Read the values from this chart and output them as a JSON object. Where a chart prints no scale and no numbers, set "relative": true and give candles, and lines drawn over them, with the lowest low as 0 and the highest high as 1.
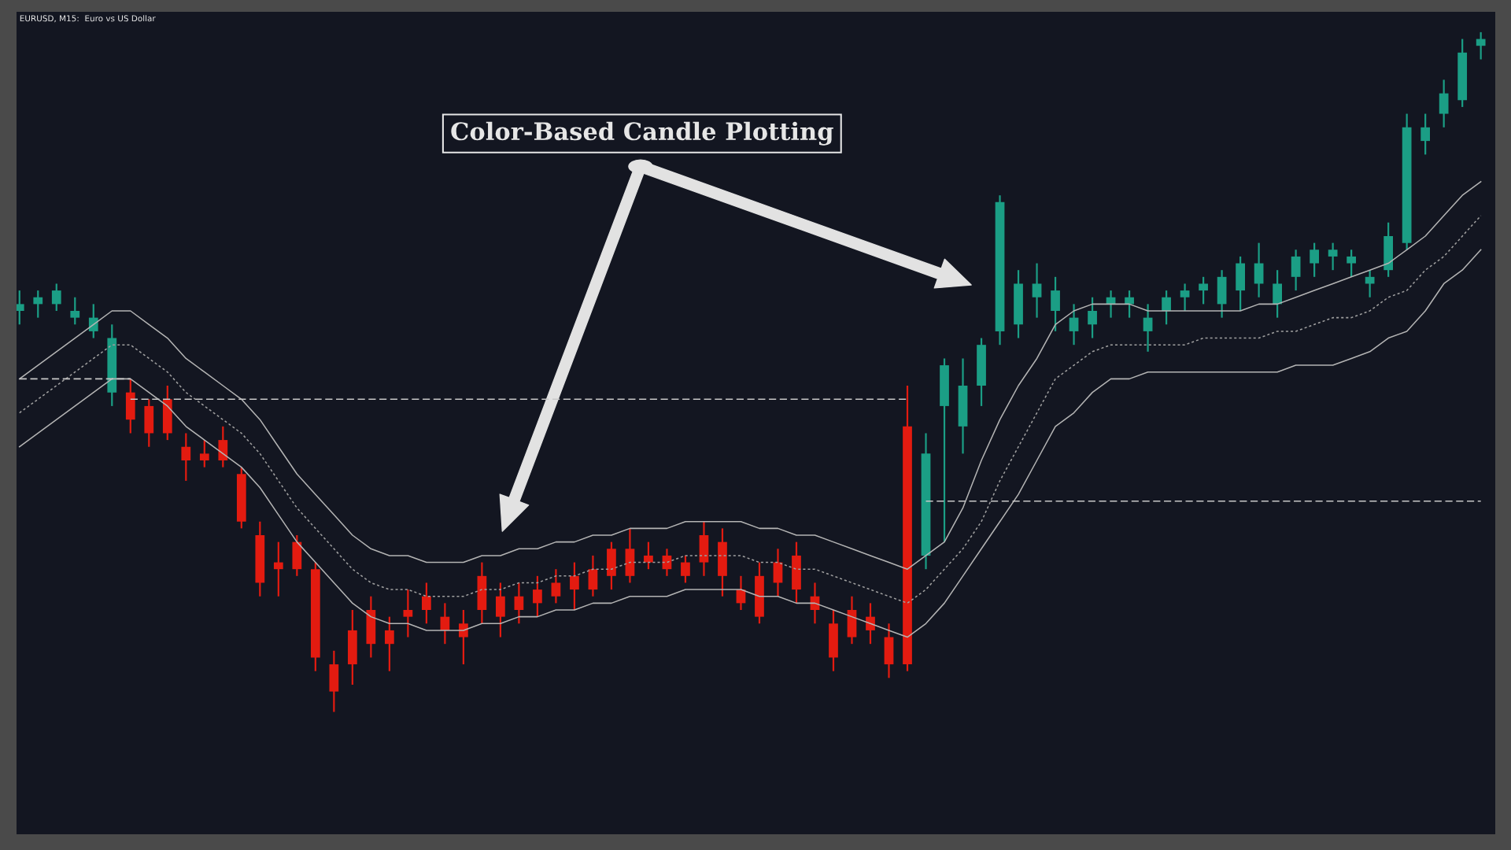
{
  "chart_data": {
    "type": "candlestick",
    "title": "EURUSD, M15:  Euro vs US Dollar",
    "relative": true,
    "tick_labels": false,
    "categories": [
      null,
      null,
      null,
      null,
      null,
      null,
      null,
      null,
      null,
      null,
      null,
      null,
      null,
      null,
      null,
      null,
      null,
      null,
      null,
      null,
      null,
      null,
      null,
      null,
      null,
      null,
      null,
      null,
      null,
      null,
      null,
      null,
      null,
      null,
      null,
      null,
      null,
      null,
      null,
      null,
      null,
      null,
      null,
      null,
      null,
      null,
      null,
      null,
      null,
      null,
      null,
      null,
      null,
      null,
      null,
      null,
      null,
      null,
      null,
      null,
      null,
      null,
      null,
      null,
      null,
      null,
      null,
      null,
      null,
      null,
      null,
      null,
      null,
      null,
      null,
      null,
      null,
      null,
      null,
      null
    ],
    "ohlc": [
      [
        0.59,
        0.62,
        0.57,
        0.6
      ],
      [
        0.6,
        0.62,
        0.58,
        0.61
      ],
      [
        0.6,
        0.63,
        0.59,
        0.62
      ],
      [
        0.58,
        0.61,
        0.57,
        0.59
      ],
      [
        0.56,
        0.6,
        0.55,
        0.58
      ],
      [
        0.47,
        0.57,
        0.45,
        0.55
      ],
      [
        0.47,
        0.49,
        0.41,
        0.43
      ],
      [
        0.45,
        0.46,
        0.39,
        0.41
      ],
      [
        0.46,
        0.48,
        0.4,
        0.41
      ],
      [
        0.39,
        0.41,
        0.34,
        0.37
      ],
      [
        0.38,
        0.4,
        0.36,
        0.37
      ],
      [
        0.4,
        0.42,
        0.36,
        0.37
      ],
      [
        0.35,
        0.36,
        0.27,
        0.28
      ],
      [
        0.26,
        0.28,
        0.17,
        0.19
      ],
      [
        0.22,
        0.25,
        0.17,
        0.21
      ],
      [
        0.25,
        0.26,
        0.2,
        0.21
      ],
      [
        0.21,
        0.22,
        0.06,
        0.08
      ],
      [
        0.07,
        0.09,
        0.0,
        0.03
      ],
      [
        0.12,
        0.15,
        0.04,
        0.07
      ],
      [
        0.15,
        0.17,
        0.08,
        0.1
      ],
      [
        0.12,
        0.14,
        0.06,
        0.1
      ],
      [
        0.15,
        0.18,
        0.11,
        0.14
      ],
      [
        0.17,
        0.19,
        0.13,
        0.15
      ],
      [
        0.14,
        0.16,
        0.1,
        0.12
      ],
      [
        0.13,
        0.15,
        0.07,
        0.11
      ],
      [
        0.2,
        0.22,
        0.13,
        0.15
      ],
      [
        0.17,
        0.19,
        0.11,
        0.14
      ],
      [
        0.17,
        0.19,
        0.13,
        0.15
      ],
      [
        0.18,
        0.2,
        0.14,
        0.16
      ],
      [
        0.19,
        0.21,
        0.16,
        0.17
      ],
      [
        0.2,
        0.22,
        0.15,
        0.18
      ],
      [
        0.21,
        0.23,
        0.17,
        0.18
      ],
      [
        0.24,
        0.25,
        0.18,
        0.2
      ],
      [
        0.24,
        0.27,
        0.19,
        0.2
      ],
      [
        0.23,
        0.25,
        0.21,
        0.22
      ],
      [
        0.23,
        0.24,
        0.2,
        0.21
      ],
      [
        0.22,
        0.23,
        0.19,
        0.2
      ],
      [
        0.26,
        0.28,
        0.2,
        0.22
      ],
      [
        0.25,
        0.27,
        0.17,
        0.2
      ],
      [
        0.18,
        0.2,
        0.15,
        0.16
      ],
      [
        0.2,
        0.22,
        0.13,
        0.14
      ],
      [
        0.22,
        0.24,
        0.17,
        0.19
      ],
      [
        0.23,
        0.25,
        0.16,
        0.18
      ],
      [
        0.17,
        0.19,
        0.13,
        0.15
      ],
      [
        0.13,
        0.15,
        0.06,
        0.08
      ],
      [
        0.15,
        0.17,
        0.1,
        0.11
      ],
      [
        0.14,
        0.16,
        0.1,
        0.12
      ],
      [
        0.11,
        0.13,
        0.05,
        0.07
      ],
      [
        0.42,
        0.48,
        0.06,
        0.07
      ],
      [
        0.23,
        0.41,
        0.21,
        0.38
      ],
      [
        0.45,
        0.52,
        0.25,
        0.51
      ],
      [
        0.42,
        0.52,
        0.38,
        0.48
      ],
      [
        0.48,
        0.55,
        0.45,
        0.54
      ],
      [
        0.56,
        0.76,
        0.54,
        0.75
      ],
      [
        0.57,
        0.65,
        0.55,
        0.63
      ],
      [
        0.61,
        0.66,
        0.58,
        0.63
      ],
      [
        0.59,
        0.64,
        0.56,
        0.62
      ],
      [
        0.56,
        0.6,
        0.54,
        0.58
      ],
      [
        0.57,
        0.61,
        0.55,
        0.59
      ],
      [
        0.6,
        0.62,
        0.58,
        0.61
      ],
      [
        0.6,
        0.62,
        0.58,
        0.61
      ],
      [
        0.56,
        0.6,
        0.53,
        0.58
      ],
      [
        0.59,
        0.62,
        0.57,
        0.61
      ],
      [
        0.61,
        0.63,
        0.59,
        0.62
      ],
      [
        0.62,
        0.64,
        0.6,
        0.63
      ],
      [
        0.6,
        0.65,
        0.58,
        0.64
      ],
      [
        0.62,
        0.67,
        0.59,
        0.66
      ],
      [
        0.63,
        0.69,
        0.61,
        0.66
      ],
      [
        0.6,
        0.65,
        0.58,
        0.63
      ],
      [
        0.64,
        0.68,
        0.62,
        0.67
      ],
      [
        0.66,
        0.69,
        0.64,
        0.68
      ],
      [
        0.67,
        0.69,
        0.65,
        0.68
      ],
      [
        0.66,
        0.68,
        0.64,
        0.67
      ],
      [
        0.63,
        0.65,
        0.61,
        0.64
      ],
      [
        0.65,
        0.72,
        0.64,
        0.7
      ],
      [
        0.69,
        0.88,
        0.68,
        0.86
      ],
      [
        0.84,
        0.88,
        0.82,
        0.86
      ],
      [
        0.88,
        0.93,
        0.86,
        0.91
      ],
      [
        0.9,
        0.99,
        0.89,
        0.97
      ],
      [
        0.98,
        1.0,
        0.96,
        0.99
      ]
    ],
    "colors": [
      "#1b9e85",
      "#1b9e85",
      "#1b9e85",
      "#1b9e85",
      "#1b9e85",
      "#1b9e85",
      "#e31b10",
      "#e31b10",
      "#e31b10",
      "#e31b10",
      "#e31b10",
      "#e31b10",
      "#e31b10",
      "#e31b10",
      "#e31b10",
      "#e31b10",
      "#e31b10",
      "#e31b10",
      "#e31b10",
      "#e31b10",
      "#e31b10",
      "#e31b10",
      "#e31b10",
      "#e31b10",
      "#e31b10",
      "#e31b10",
      "#e31b10",
      "#e31b10",
      "#e31b10",
      "#e31b10",
      "#e31b10",
      "#e31b10",
      "#e31b10",
      "#e31b10",
      "#e31b10",
      "#e31b10",
      "#e31b10",
      "#e31b10",
      "#e31b10",
      "#e31b10",
      "#e31b10",
      "#e31b10",
      "#e31b10",
      "#e31b10",
      "#e31b10",
      "#e31b10",
      "#e31b10",
      "#e31b10",
      "#e31b10",
      "#1b9e85",
      "#1b9e85",
      "#1b9e85",
      "#1b9e85",
      "#1b9e85",
      "#1b9e85",
      "#1b9e85",
      "#1b9e85",
      "#1b9e85",
      "#1b9e85",
      "#1b9e85",
      "#1b9e85",
      "#1b9e85",
      "#1b9e85",
      "#1b9e85",
      "#1b9e85",
      "#1b9e85",
      "#1b9e85",
      "#1b9e85",
      "#1b9e85",
      "#1b9e85",
      "#1b9e85",
      "#1b9e85",
      "#1b9e85",
      "#1b9e85",
      "#1b9e85",
      "#1b9e85",
      "#1b9e85",
      "#1b9e85",
      "#1b9e85",
      "#1b9e85"
    ],
    "series": [
      {
        "type": "line",
        "color": "#b4b4b4",
        "line_style": "solid",
        "values": [
          0.49,
          0.51,
          0.53,
          0.55,
          0.57,
          0.59,
          0.59,
          0.57,
          0.55,
          0.52,
          0.5,
          0.48,
          0.46,
          0.43,
          0.39,
          0.35,
          0.32,
          0.29,
          0.26,
          0.24,
          0.23,
          0.23,
          0.22,
          0.22,
          0.22,
          0.23,
          0.23,
          0.24,
          0.24,
          0.25,
          0.25,
          0.26,
          0.26,
          0.27,
          0.27,
          0.27,
          0.28,
          0.28,
          0.28,
          0.28,
          0.27,
          0.27,
          0.26,
          0.26,
          0.25,
          0.24,
          0.23,
          0.22,
          0.21,
          0.23,
          0.25,
          0.3,
          0.37,
          0.43,
          0.48,
          0.52,
          0.57,
          0.59,
          0.6,
          0.6,
          0.6,
          0.59,
          0.59,
          0.59,
          0.59,
          0.59,
          0.59,
          0.6,
          0.6,
          0.61,
          0.62,
          0.63,
          0.64,
          0.65,
          0.66,
          0.68,
          0.7,
          0.73,
          0.76,
          0.78
        ]
      },
      {
        "type": "line",
        "color": "#a0a0a0",
        "line_style": "dotted",
        "values": [
          0.44,
          0.46,
          0.48,
          0.5,
          0.52,
          0.54,
          0.54,
          0.52,
          0.5,
          0.47,
          0.45,
          0.43,
          0.41,
          0.38,
          0.34,
          0.3,
          0.27,
          0.24,
          0.21,
          0.19,
          0.18,
          0.18,
          0.17,
          0.17,
          0.17,
          0.18,
          0.18,
          0.19,
          0.19,
          0.2,
          0.2,
          0.21,
          0.21,
          0.22,
          0.22,
          0.22,
          0.23,
          0.23,
          0.23,
          0.23,
          0.22,
          0.22,
          0.21,
          0.21,
          0.2,
          0.19,
          0.18,
          0.17,
          0.16,
          0.18,
          0.21,
          0.24,
          0.28,
          0.34,
          0.39,
          0.44,
          0.49,
          0.51,
          0.53,
          0.54,
          0.54,
          0.54,
          0.54,
          0.54,
          0.55,
          0.55,
          0.55,
          0.55,
          0.56,
          0.56,
          0.57,
          0.58,
          0.58,
          0.59,
          0.61,
          0.62,
          0.65,
          0.67,
          0.7,
          0.73
        ]
      },
      {
        "type": "line",
        "color": "#b4b4b4",
        "line_style": "solid",
        "values": [
          0.39,
          0.41,
          0.43,
          0.45,
          0.47,
          0.49,
          0.49,
          0.47,
          0.45,
          0.42,
          0.4,
          0.38,
          0.36,
          0.33,
          0.29,
          0.25,
          0.22,
          0.19,
          0.16,
          0.14,
          0.13,
          0.13,
          0.12,
          0.12,
          0.12,
          0.13,
          0.13,
          0.14,
          0.14,
          0.15,
          0.15,
          0.16,
          0.16,
          0.17,
          0.17,
          0.17,
          0.18,
          0.18,
          0.18,
          0.18,
          0.17,
          0.17,
          0.16,
          0.16,
          0.15,
          0.14,
          0.13,
          0.12,
          0.11,
          0.13,
          0.16,
          0.2,
          0.24,
          0.28,
          0.32,
          0.37,
          0.42,
          0.44,
          0.47,
          0.49,
          0.49,
          0.5,
          0.5,
          0.5,
          0.5,
          0.5,
          0.5,
          0.5,
          0.5,
          0.51,
          0.51,
          0.51,
          0.52,
          0.53,
          0.55,
          0.56,
          0.59,
          0.63,
          0.65,
          0.68
        ]
      },
      {
        "type": "line",
        "color": "#c8c8c8",
        "line_style": "dashed",
        "values": [
          0.49,
          0.49,
          0.49,
          0.49,
          0.49,
          0.49,
          0.49,
          null,
          null,
          null,
          null,
          null,
          null,
          null,
          null,
          null,
          null,
          null,
          null,
          null,
          null,
          null,
          null,
          null,
          null,
          null,
          null,
          null,
          null,
          null,
          null,
          null,
          null,
          null,
          null,
          null,
          null,
          null,
          null,
          null,
          null,
          null,
          null,
          null,
          null,
          null,
          null,
          null,
          null,
          null,
          null,
          null,
          null,
          null,
          null,
          null,
          null,
          null,
          null,
          null,
          null,
          null,
          null,
          null,
          null,
          null,
          null,
          null,
          null,
          null,
          null,
          null,
          null,
          null,
          null,
          null,
          null,
          null,
          null,
          null
        ]
      },
      {
        "type": "line",
        "color": "#c8c8c8",
        "line_style": "dashed",
        "values": [
          null,
          null,
          null,
          null,
          null,
          null,
          0.46,
          0.46,
          0.46,
          0.46,
          0.46,
          0.46,
          0.46,
          0.46,
          0.46,
          0.46,
          0.46,
          0.46,
          0.46,
          0.46,
          0.46,
          0.46,
          0.46,
          0.46,
          0.46,
          0.46,
          0.46,
          0.46,
          0.46,
          0.46,
          0.46,
          0.46,
          0.46,
          0.46,
          0.46,
          0.46,
          0.46,
          0.46,
          0.46,
          0.46,
          0.46,
          0.46,
          0.46,
          0.46,
          0.46,
          0.46,
          0.46,
          0.46,
          0.46,
          null,
          null,
          null,
          null,
          null,
          null,
          null,
          null,
          null,
          null,
          null,
          null,
          null,
          null,
          null,
          null,
          null,
          null,
          null,
          null,
          null,
          null,
          null,
          null,
          null,
          null,
          null,
          null,
          null,
          null,
          null
        ]
      },
      {
        "type": "line",
        "color": "#c8c8c8",
        "line_style": "dashed",
        "values": [
          null,
          null,
          null,
          null,
          null,
          null,
          null,
          null,
          null,
          null,
          null,
          null,
          null,
          null,
          null,
          null,
          null,
          null,
          null,
          null,
          null,
          null,
          null,
          null,
          null,
          null,
          null,
          null,
          null,
          null,
          null,
          null,
          null,
          null,
          null,
          null,
          null,
          null,
          null,
          null,
          null,
          null,
          null,
          null,
          null,
          null,
          null,
          null,
          null,
          0.31,
          0.31,
          0.31,
          0.31,
          0.31,
          0.31,
          0.31,
          0.31,
          0.31,
          0.31,
          0.31,
          0.31,
          0.31,
          0.31,
          0.31,
          0.31,
          0.31,
          0.31,
          0.31,
          0.31,
          0.31,
          0.31,
          0.31,
          0.31,
          0.31,
          0.31,
          0.31,
          0.31,
          0.31,
          0.31,
          0.31
        ]
      }
    ],
    "annotations": [
      "Color-Based Candle Plotting"
    ]
  }
}
